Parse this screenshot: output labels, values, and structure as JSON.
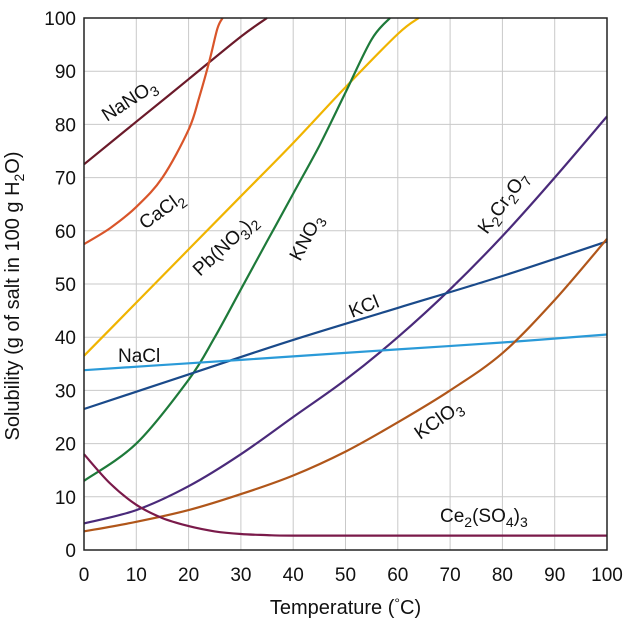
{
  "chart_data": {
    "type": "line",
    "title": "",
    "xlabel_parts": [
      "Temperature (",
      "°",
      "C)"
    ],
    "ylabel_parts": [
      "Solubility (g of salt in 100 g H",
      "2",
      "O)"
    ],
    "xlim": [
      0,
      100
    ],
    "ylim": [
      0,
      100
    ],
    "xticks": [
      "0",
      "10",
      "20",
      "30",
      "40",
      "50",
      "60",
      "70",
      "80",
      "90",
      "100"
    ],
    "yticks": [
      "0",
      "10",
      "20",
      "30",
      "40",
      "50",
      "60",
      "70",
      "80",
      "90",
      "100"
    ],
    "grid": true,
    "legend": "inline labels on curves",
    "series": [
      {
        "name": "NaNO3",
        "label_parts": [
          [
            "NaNO",
            ""
          ],
          [
            "3",
            "sub"
          ]
        ],
        "color": "#6b1a2a",
        "x": [
          0,
          10,
          20,
          30,
          35
        ],
        "y": [
          72.5,
          80.5,
          88.5,
          96.5,
          100
        ]
      },
      {
        "name": "CaCl2",
        "label_parts": [
          [
            "CaCl",
            ""
          ],
          [
            "2",
            "sub"
          ]
        ],
        "color": "#d9552a",
        "x": [
          0,
          5,
          10,
          15,
          20,
          22,
          24,
          25.5,
          26.5
        ],
        "y": [
          57.5,
          60.5,
          64.5,
          70,
          79,
          85,
          92,
          98,
          100
        ]
      },
      {
        "name": "Pb(NO3)2",
        "label_parts": [
          [
            "Pb(NO",
            ""
          ],
          [
            "3",
            "sub"
          ],
          [
            ")",
            ""
          ],
          [
            "2",
            "sub"
          ]
        ],
        "color": "#f0b400",
        "x": [
          0,
          10,
          20,
          30,
          40,
          50,
          60,
          64
        ],
        "y": [
          36.5,
          46.5,
          56.5,
          66.5,
          76.5,
          87,
          97,
          100
        ]
      },
      {
        "name": "KNO3",
        "label_parts": [
          [
            "KNO",
            ""
          ],
          [
            "3",
            "sub"
          ]
        ],
        "color": "#1e7a3a",
        "x": [
          0,
          10,
          20,
          25,
          30,
          35,
          40,
          45,
          50,
          55,
          58.5
        ],
        "y": [
          13,
          20,
          32,
          40,
          49,
          58,
          67,
          76,
          86,
          96,
          100
        ]
      },
      {
        "name": "K2Cr2O7",
        "label_parts": [
          [
            "K",
            ""
          ],
          [
            "2",
            "sub"
          ],
          [
            "Cr",
            ""
          ],
          [
            "2",
            "sub"
          ],
          [
            "O",
            ""
          ],
          [
            "7",
            "sub"
          ]
        ],
        "color": "#4a2a7a",
        "x": [
          0,
          10,
          20,
          30,
          40,
          50,
          60,
          70,
          80,
          90,
          100
        ],
        "y": [
          5,
          7.5,
          12,
          18,
          25,
          32,
          40,
          49,
          59,
          70,
          81.5
        ]
      },
      {
        "name": "KCl",
        "label_parts": [
          [
            "KCl",
            ""
          ]
        ],
        "color": "#1a4a8a",
        "x": [
          0,
          20,
          40,
          60,
          80,
          100
        ],
        "y": [
          26.5,
          33,
          39.5,
          45.5,
          51.5,
          58
        ]
      },
      {
        "name": "NaCl",
        "label_parts": [
          [
            "NaCl",
            ""
          ]
        ],
        "color": "#2a9ad8",
        "x": [
          0,
          20,
          40,
          60,
          80,
          100
        ],
        "y": [
          33.8,
          35.1,
          36.4,
          37.7,
          39,
          40.5
        ]
      },
      {
        "name": "KClO3",
        "label_parts": [
          [
            "KClO",
            ""
          ],
          [
            "3",
            "sub"
          ]
        ],
        "color": "#b0561a",
        "x": [
          0,
          10,
          20,
          30,
          40,
          50,
          60,
          70,
          80,
          90,
          100
        ],
        "y": [
          3.5,
          5.3,
          7.5,
          10.5,
          14,
          18.5,
          24,
          30,
          37,
          47,
          58.5
        ]
      },
      {
        "name": "Ce2(SO4)3",
        "label_parts": [
          [
            "Ce",
            ""
          ],
          [
            "2",
            "sub"
          ],
          [
            "(SO",
            ""
          ],
          [
            "4",
            "sub"
          ],
          [
            ")",
            ""
          ],
          [
            "3",
            "sub"
          ]
        ],
        "color": "#7a1a4a",
        "x": [
          0,
          5,
          10,
          15,
          20,
          25,
          30,
          35,
          40,
          60,
          80,
          100
        ],
        "y": [
          18,
          12.5,
          8.5,
          6,
          4.5,
          3.5,
          3,
          2.8,
          2.7,
          2.7,
          2.7,
          2.7
        ]
      }
    ]
  }
}
